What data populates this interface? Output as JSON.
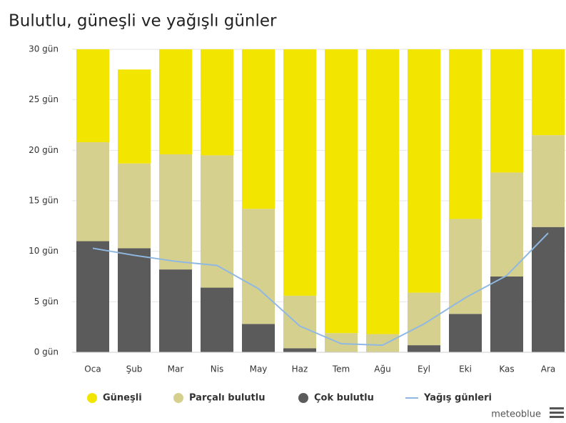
{
  "chart_data": {
    "type": "bar",
    "stacked": true,
    "title": "Bulutlu, güneşli ve yağışlı günler",
    "credit": "meteoblue",
    "categories": [
      "Oca",
      "Şub",
      "Mar",
      "Nis",
      "May",
      "Haz",
      "Tem",
      "Ağu",
      "Eyl",
      "Eki",
      "Kas",
      "Ara"
    ],
    "series": [
      {
        "name": "Güneşli",
        "color": "#f2e500",
        "values": [
          9.2,
          9.3,
          10.4,
          10.5,
          15.8,
          24.4,
          28.1,
          28.2,
          24.1,
          16.8,
          12.2,
          8.5
        ]
      },
      {
        "name": "Parçalı bulutlu",
        "color": "#d6d08e",
        "values": [
          9.8,
          8.4,
          11.4,
          13.1,
          11.4,
          5.2,
          1.9,
          1.8,
          5.2,
          9.4,
          10.3,
          9.1
        ]
      },
      {
        "name": "Çok bulutlu",
        "color": "#5b5b5b",
        "values": [
          11.0,
          10.3,
          8.2,
          6.4,
          2.8,
          0.4,
          0,
          0,
          0.7,
          3.8,
          7.5,
          12.4
        ]
      },
      {
        "name": "Yağış günleri",
        "type": "line",
        "color": "#8fb8e2",
        "values": [
          10.3,
          9.6,
          9.0,
          8.6,
          6.3,
          2.6,
          0.85,
          0.7,
          2.8,
          5.4,
          7.6,
          11.8
        ]
      }
    ],
    "ylim": [
      0,
      30
    ],
    "yticks": [
      {
        "value": 0,
        "label": "0 gün"
      },
      {
        "value": 5,
        "label": "5 gün"
      },
      {
        "value": 10,
        "label": "10 gün"
      },
      {
        "value": 15,
        "label": "15 gün"
      },
      {
        "value": 20,
        "label": "20 gün"
      },
      {
        "value": 25,
        "label": "25 gün"
      },
      {
        "value": 30,
        "label": "30 gün"
      }
    ],
    "grid": true
  }
}
